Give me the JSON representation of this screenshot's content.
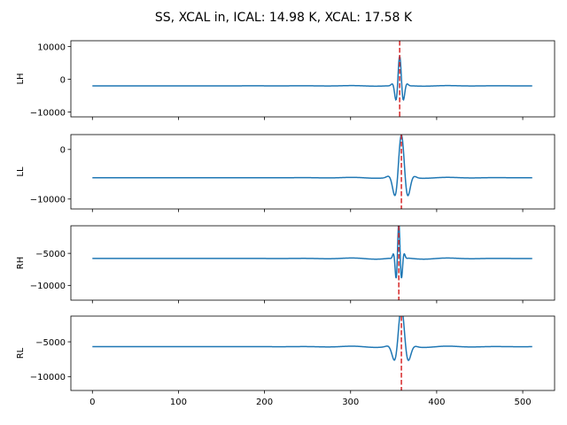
{
  "figure": {
    "title": "SS, XCAL in, ICAL: 14.98 K, XCAL: 17.58 K"
  },
  "chart_data": [
    {
      "type": "line",
      "ylabel": "LH",
      "xlim": [
        -25,
        537
      ],
      "ylim": [
        -11500,
        11800
      ],
      "xticks": [
        0,
        100,
        200,
        300,
        400,
        500
      ],
      "show_xtick_labels": false,
      "yticks": [
        -10000,
        0,
        10000
      ],
      "ytick_labels": [
        "−10000",
        "0",
        "10000"
      ],
      "baseline": -2000,
      "burst_center": 357,
      "amplitude": 9000,
      "burst_width": 5.5,
      "oscillation_period": 10,
      "vline_x": 357,
      "series_color": "#1f77b4",
      "vline_color": "#d62728"
    },
    {
      "type": "line",
      "ylabel": "LL",
      "xlim": [
        -25,
        537
      ],
      "ylim": [
        -12000,
        3000
      ],
      "xticks": [
        0,
        100,
        200,
        300,
        400,
        500
      ],
      "show_xtick_labels": false,
      "yticks": [
        -10000,
        0
      ],
      "ytick_labels": [
        "−10000",
        "0"
      ],
      "baseline": -5700,
      "burst_center": 359,
      "amplitude": 8500,
      "burst_width": 9,
      "oscillation_period": 18,
      "vline_x": 359,
      "series_color": "#1f77b4",
      "vline_color": "#d62728"
    },
    {
      "type": "line",
      "ylabel": "RH",
      "xlim": [
        -25,
        537
      ],
      "ylim": [
        -12300,
        -700
      ],
      "xticks": [
        0,
        100,
        200,
        300,
        400,
        500
      ],
      "show_xtick_labels": false,
      "yticks": [
        -10000,
        -5000
      ],
      "ytick_labels": [
        "−10000",
        "−5000"
      ],
      "baseline": -5800,
      "burst_center": 356,
      "amplitude": 5500,
      "burst_width": 4.5,
      "oscillation_period": 7,
      "vline_x": 356,
      "series_color": "#1f77b4",
      "vline_color": "#d62728"
    },
    {
      "type": "line",
      "ylabel": "RL",
      "xlim": [
        -25,
        537
      ],
      "ylim": [
        -12000,
        -1300
      ],
      "xticks": [
        0,
        100,
        200,
        300,
        400,
        500
      ],
      "show_xtick_labels": true,
      "xtick_labels": [
        "0",
        "100",
        "200",
        "300",
        "400",
        "500"
      ],
      "yticks": [
        -10000,
        -5000
      ],
      "ytick_labels": [
        "−10000",
        "−5000"
      ],
      "baseline": -5700,
      "burst_center": 359,
      "amplitude": 5500,
      "burst_width": 9,
      "oscillation_period": 20,
      "vline_x": 359,
      "series_color": "#1f77b4",
      "vline_color": "#d62728"
    }
  ]
}
